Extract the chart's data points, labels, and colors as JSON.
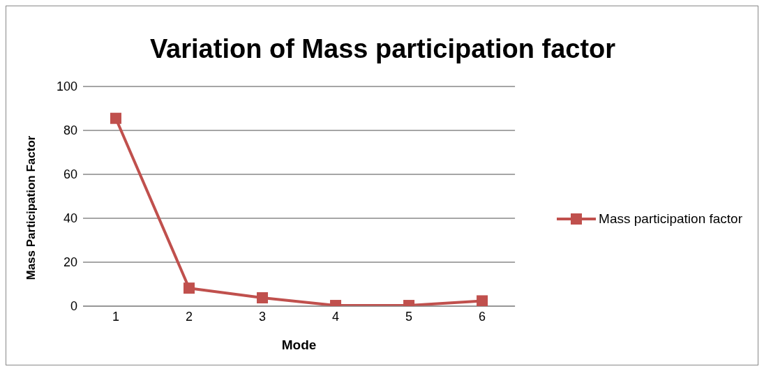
{
  "chart_data": {
    "type": "line",
    "title": "Variation of Mass participation factor",
    "xlabel": "Mode",
    "ylabel": "Mass Participation Factor",
    "categories": [
      "1",
      "2",
      "3",
      "4",
      "5",
      "6"
    ],
    "series": [
      {
        "name": "Mass participation factor",
        "color": "#c0504d",
        "values": [
          85.5,
          8.2,
          3.8,
          0.3,
          0.3,
          2.4
        ]
      }
    ],
    "ylim": [
      0,
      100
    ],
    "yticks": [
      0,
      20,
      40,
      60,
      80,
      100
    ],
    "grid": "y",
    "legend": "right",
    "marker": "square",
    "line_style": "solid"
  }
}
